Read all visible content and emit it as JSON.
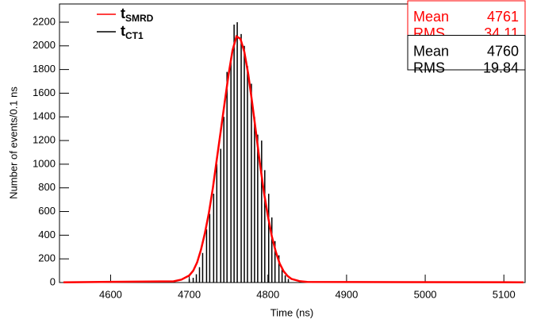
{
  "chart_data": {
    "type": "histogram",
    "xlabel": "Time (ns)",
    "ylabel": "Number of events/0.1 ns",
    "xlim": [
      4535,
      5127
    ],
    "ylim": [
      0,
      2354
    ],
    "xticks": [
      4600,
      4700,
      4800,
      4900,
      5000,
      5100
    ],
    "yticks": [
      0,
      200,
      400,
      600,
      800,
      1000,
      1200,
      1400,
      1600,
      1800,
      2000,
      2200
    ],
    "series": [
      {
        "name": "t",
        "subscript": "SMRD",
        "color": "#ff0000",
        "style": "line",
        "x": [
          4540,
          4680,
          4690,
          4700,
          4705,
          4710,
          4715,
          4720,
          4725,
          4730,
          4735,
          4740,
          4745,
          4750,
          4755,
          4760,
          4765,
          4770,
          4775,
          4780,
          4785,
          4790,
          4795,
          4800,
          4805,
          4810,
          4815,
          4820,
          4825,
          4830,
          4840,
          4850,
          5125
        ],
        "values": [
          2,
          10,
          25,
          60,
          100,
          170,
          280,
          420,
          590,
          800,
          1040,
          1280,
          1520,
          1760,
          1960,
          2080,
          2060,
          1950,
          1760,
          1520,
          1260,
          1000,
          760,
          560,
          390,
          260,
          160,
          95,
          55,
          30,
          12,
          5,
          2
        ]
      },
      {
        "name": "t",
        "subscript": "CT1",
        "color": "#000000",
        "style": "spikes",
        "x": [
          4700,
          4705,
          4709,
          4713,
          4717,
          4722,
          4726,
          4731,
          4735,
          4740,
          4744,
          4748,
          4753,
          4757,
          4761,
          4766,
          4770,
          4774,
          4779,
          4783,
          4787,
          4792,
          4796,
          4801,
          4805,
          4809,
          4814,
          4818,
          4822,
          4826
        ],
        "values": [
          30,
          40,
          70,
          130,
          250,
          450,
          580,
          750,
          1000,
          1130,
          1400,
          1780,
          1900,
          2180,
          2200,
          2100,
          2000,
          1830,
          1680,
          1400,
          1250,
          1200,
          950,
          750,
          550,
          350,
          230,
          120,
          60,
          30
        ]
      }
    ],
    "stats": [
      {
        "color": "#ff0000",
        "rows": [
          {
            "label": "Mean",
            "value": 4761
          },
          {
            "label": "RMS",
            "value": 34.11
          }
        ]
      },
      {
        "color": "#000000",
        "rows": [
          {
            "label": "Mean",
            "value": 4760
          },
          {
            "label": "RMS",
            "value": 19.84
          }
        ]
      }
    ]
  }
}
